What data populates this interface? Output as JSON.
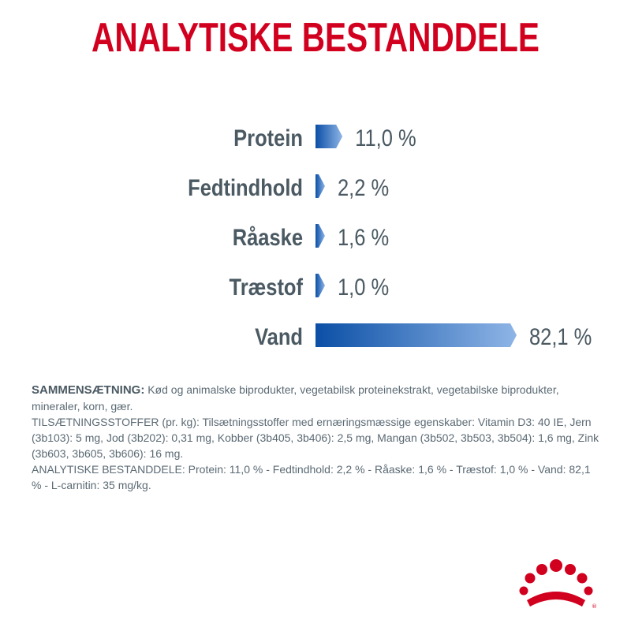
{
  "title": "ANALYTISKE BESTANDDELE",
  "chart_data": {
    "type": "bar",
    "orientation": "horizontal",
    "categories": [
      "Protein",
      "Fedtindhold",
      "Råaske",
      "Træstof",
      "Vand"
    ],
    "values": [
      11.0,
      2.2,
      1.6,
      1.0,
      82.1
    ],
    "value_labels": [
      "11,0 %",
      "2,2 %",
      "1,6 %",
      "1,0 %",
      "82,1 %"
    ],
    "xlim": [
      0,
      82.1
    ],
    "grid": false,
    "colors": {
      "bar_start": "#0b4fa6",
      "bar_end": "#8fb5e6",
      "label": "#4a5962",
      "title": "#d2001f"
    }
  },
  "composition": {
    "heading": "SAMMENSÆTNING:",
    "ingredients": " Kød og animalske biprodukter, vegetabilsk proteinekstrakt, vegetabilske biprodukter, mineraler, korn, gær.",
    "additives": "TILSÆTNINGSSTOFFER (pr. kg): Tilsætningsstoffer med ernæringsmæssige egenskaber: Vitamin D3: 40 IE, Jern (3b103): 5 mg, Jod (3b202): 0,31 mg, Kobber (3b405, 3b406): 2,5 mg, Mangan (3b502, 3b503, 3b504): 1,6 mg, Zink (3b603, 3b605, 3b606): 16 mg.",
    "analysis": "ANALYTISKE BESTANDDELE: Protein: 11,0 % - Fedtindhold: 2,2 % - Råaske: 1,6 % - Træstof: 1,0 % - Vand: 82,1 % - L-carnitin: 35 mg/kg."
  },
  "logo": {
    "icon": "crown-icon",
    "color": "#d2001f"
  }
}
